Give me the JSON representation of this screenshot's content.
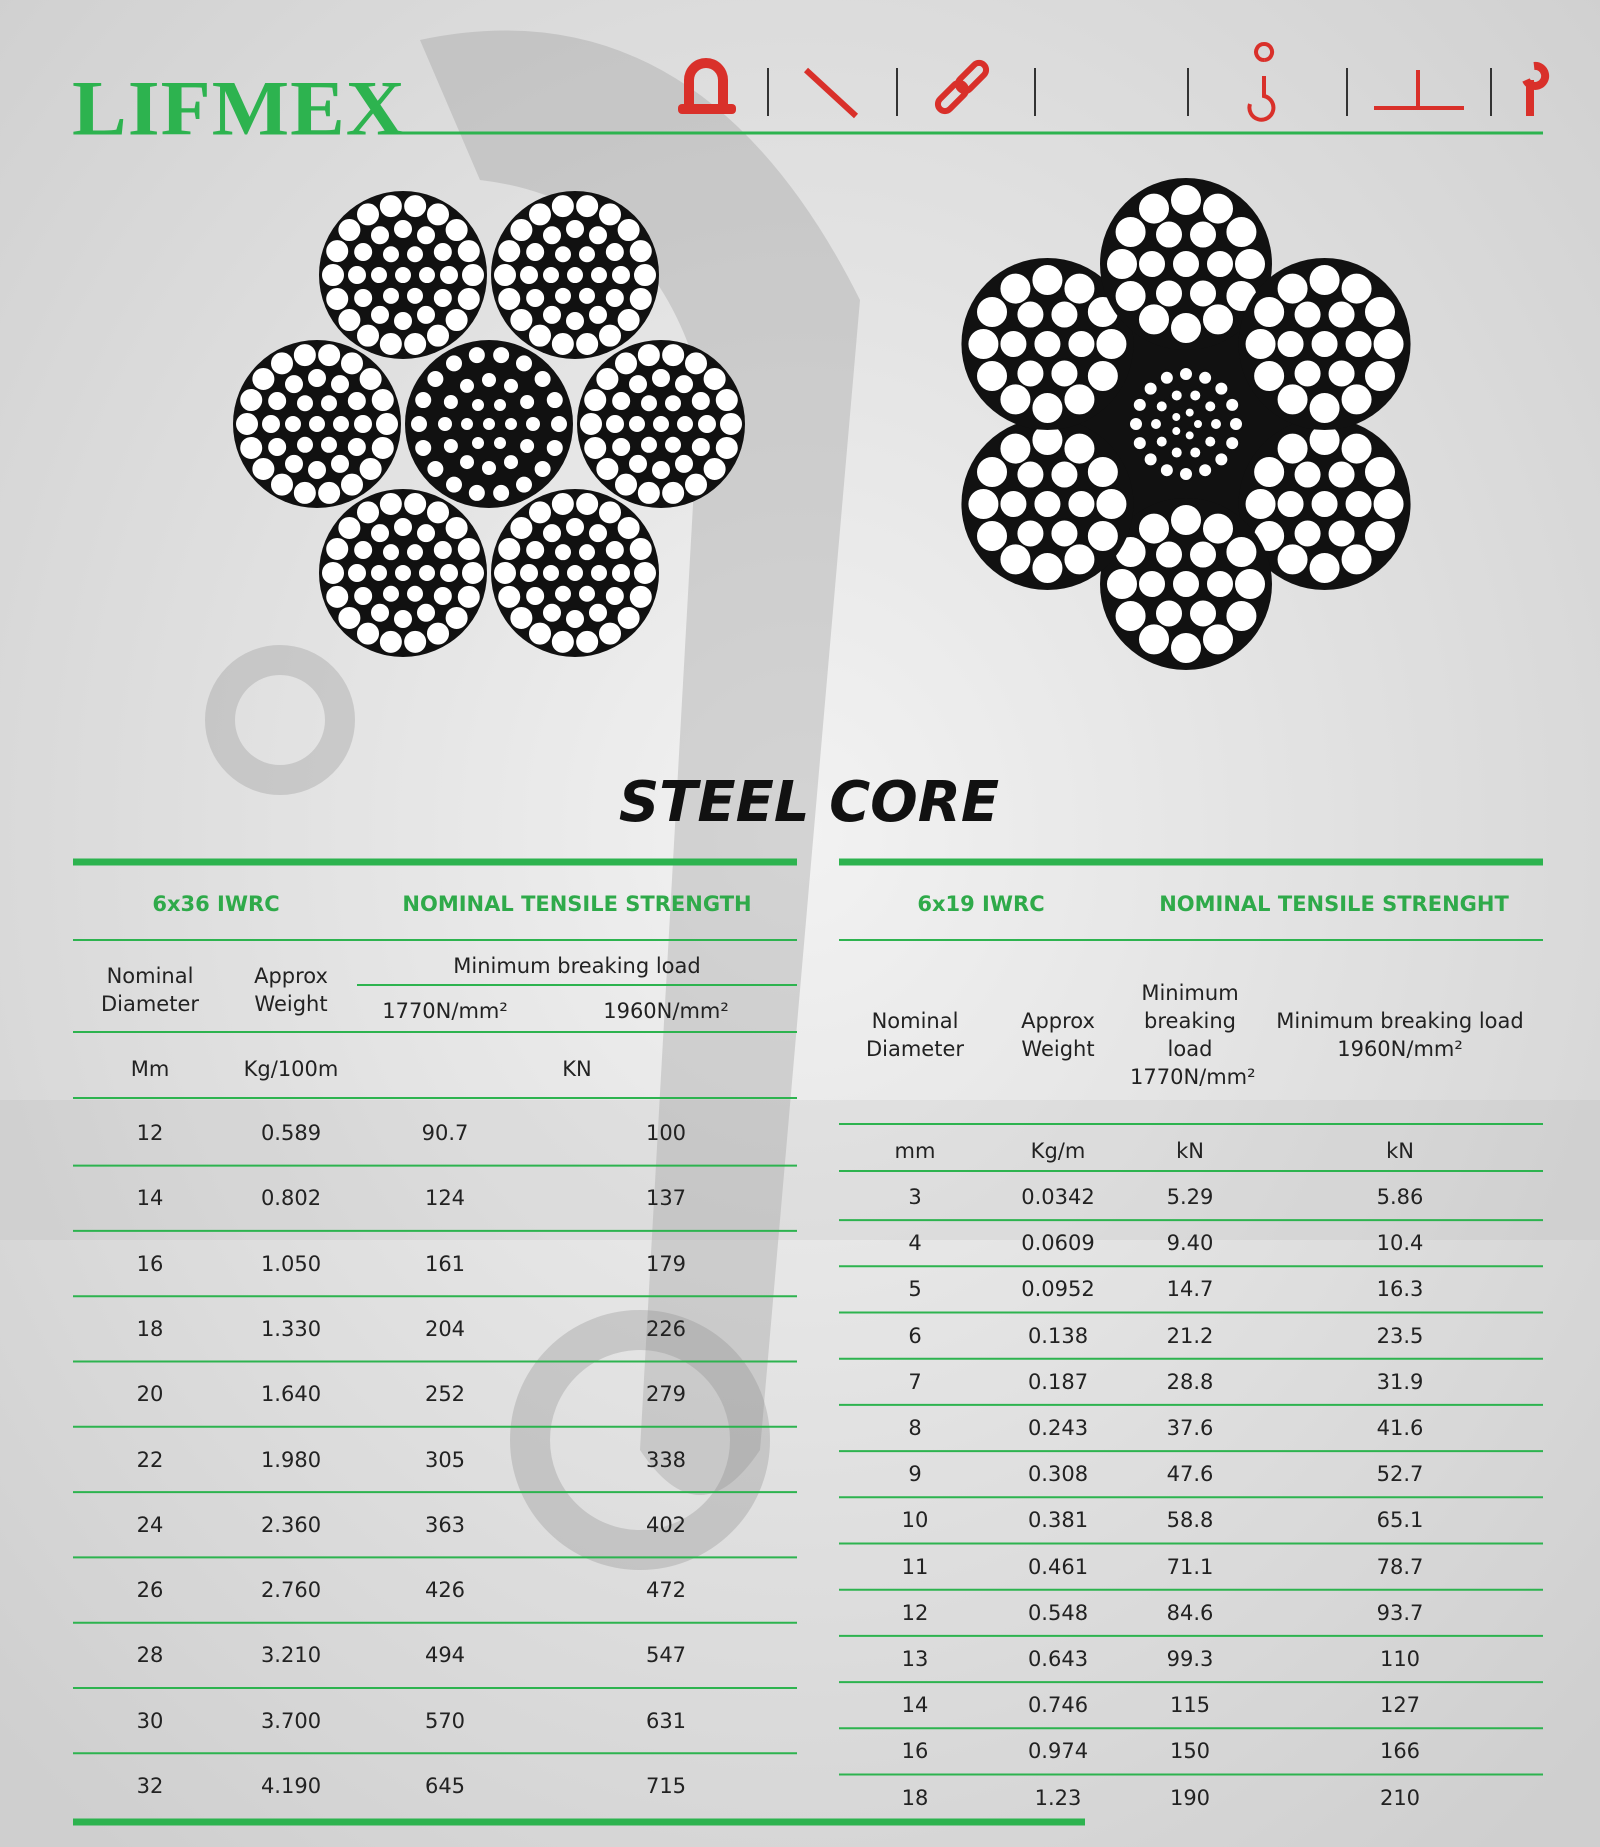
{
  "header": {
    "logo": "LIFMEX"
  },
  "title": "STEEL CORE",
  "table_left": {
    "product": "6x36 IWRC",
    "strength_heading": "NOMINAL TENSILE STRENGTH",
    "columns": [
      "Nominal Diameter",
      "Approx Weight",
      "Minimum breaking load"
    ],
    "grades": [
      "1770N/mm²",
      "1960N/mm²"
    ],
    "units": [
      "Mm",
      "Kg/100m",
      "KN"
    ],
    "rows": [
      [
        "12",
        "0.589",
        "90.7",
        "100"
      ],
      [
        "14",
        "0.802",
        "124",
        "137"
      ],
      [
        "16",
        "1.050",
        "161",
        "179"
      ],
      [
        "18",
        "1.330",
        "204",
        "226"
      ],
      [
        "20",
        "1.640",
        "252",
        "279"
      ],
      [
        "22",
        "1.980",
        "305",
        "338"
      ],
      [
        "24",
        "2.360",
        "363",
        "402"
      ],
      [
        "26",
        "2.760",
        "426",
        "472"
      ],
      [
        "28",
        "3.210",
        "494",
        "547"
      ],
      [
        "30",
        "3.700",
        "570",
        "631"
      ],
      [
        "32",
        "4.190",
        "645",
        "715"
      ]
    ]
  },
  "table_right": {
    "product": "6x19 IWRC",
    "strength_heading": "NOMINAL TENSILE STRENGHT",
    "columns": [
      "Nominal Diameter",
      "Approx Weight",
      "Minimum breaking load 1770N/mm²",
      "Minimum breaking load 1960N/mm²"
    ],
    "units": [
      "mm",
      "Kg/m",
      "kN",
      "kN"
    ],
    "rows": [
      [
        "3",
        "0.0342",
        "5.29",
        "5.86"
      ],
      [
        "4",
        "0.0609",
        "9.40",
        "10.4"
      ],
      [
        "5",
        "0.0952",
        "14.7",
        "16.3"
      ],
      [
        "6",
        "0.138",
        "21.2",
        "23.5"
      ],
      [
        "7",
        "0.187",
        "28.8",
        "31.9"
      ],
      [
        "8",
        "0.243",
        "37.6",
        "41.6"
      ],
      [
        "9",
        "0.308",
        "47.6",
        "52.7"
      ],
      [
        "10",
        "0.381",
        "58.8",
        "65.1"
      ],
      [
        "11",
        "0.461",
        "71.1",
        "78.7"
      ],
      [
        "12",
        "0.548",
        "84.6",
        "93.7"
      ],
      [
        "13",
        "0.643",
        "99.3",
        "110"
      ],
      [
        "14",
        "0.746",
        "115",
        "127"
      ],
      [
        "16",
        "0.974",
        "150",
        "166"
      ],
      [
        "18",
        "1.23",
        "190",
        "210"
      ]
    ]
  }
}
